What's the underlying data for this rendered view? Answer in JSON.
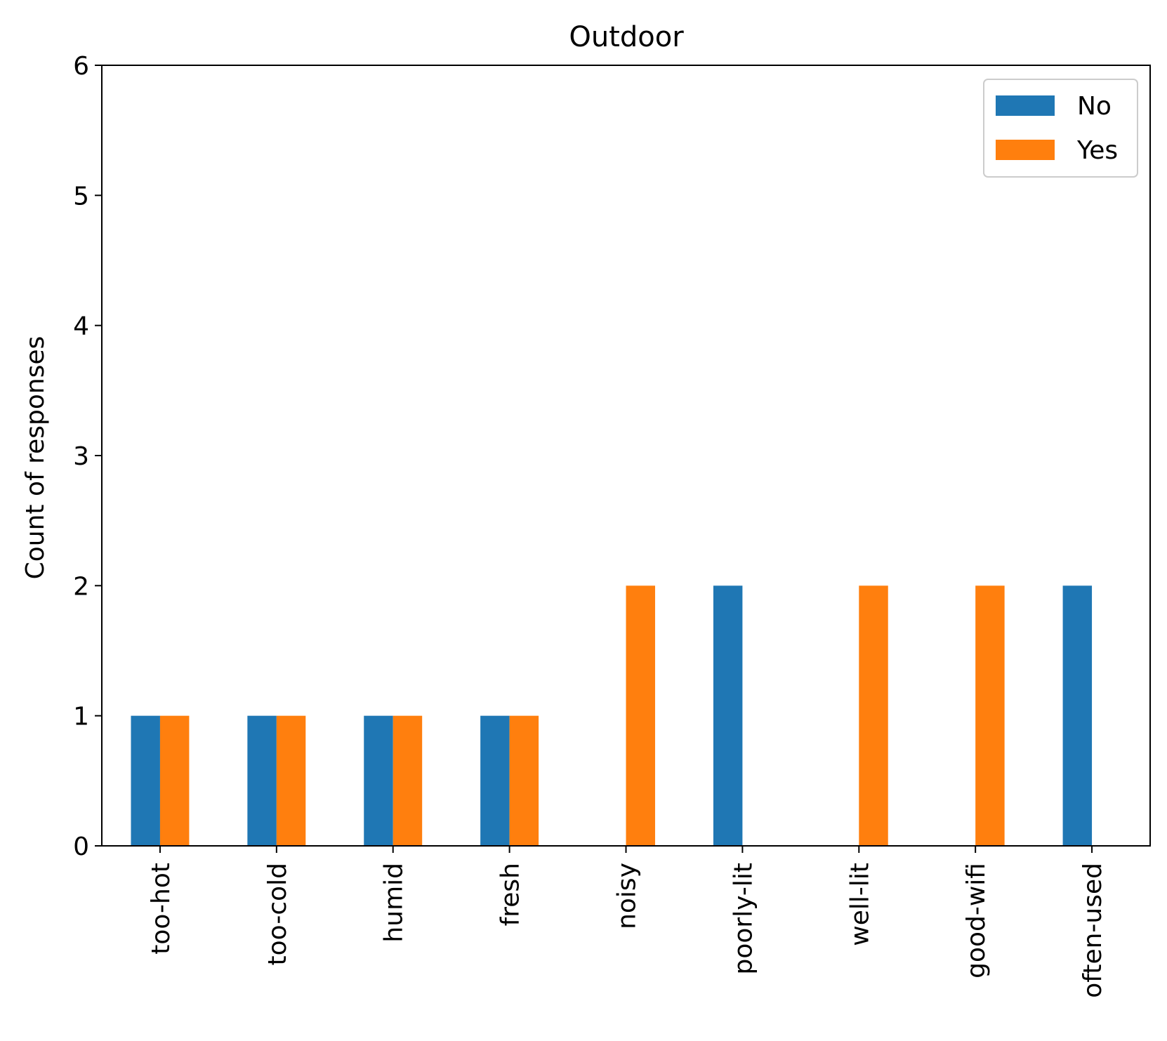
{
  "chart_data": {
    "type": "bar",
    "title": "Outdoor",
    "xlabel": "",
    "ylabel": "Count of responses",
    "categories": [
      "too-hot",
      "too-cold",
      "humid",
      "fresh",
      "noisy",
      "poorly-lit",
      "well-lit",
      "good-wifi",
      "often-used"
    ],
    "series": [
      {
        "name": "No",
        "values": [
          1,
          1,
          1,
          1,
          0,
          2,
          0,
          0,
          2
        ],
        "color": "#1f77b4"
      },
      {
        "name": "Yes",
        "values": [
          1,
          1,
          1,
          1,
          2,
          0,
          2,
          2,
          0
        ],
        "color": "#ff7f0e"
      }
    ],
    "ylim": [
      0,
      6
    ],
    "yticks": [
      0,
      1,
      2,
      3,
      4,
      5,
      6
    ],
    "grid": false,
    "legend": "upper right"
  }
}
